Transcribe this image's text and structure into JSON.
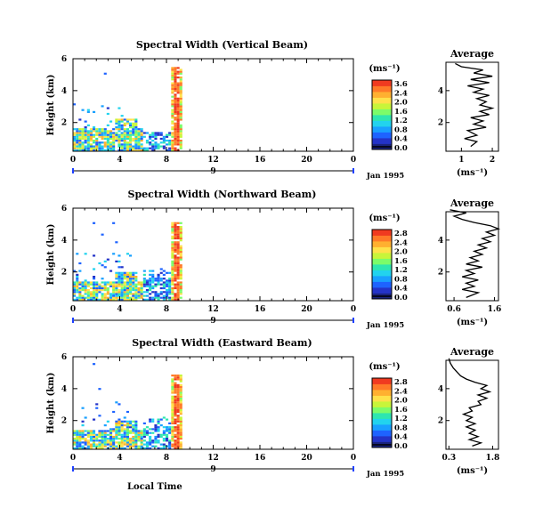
{
  "x_tick_labels": [
    "0",
    "4",
    "8",
    "12",
    "16",
    "20",
    "0"
  ],
  "date_label": "Jan 1995",
  "local_time_label": "Local Time",
  "colorbar_unit": "(ms⁻¹)",
  "average_title": "Average",
  "average_unit": "(ms⁻¹)",
  "colors": {
    "very_low": "#1a237e",
    "low": "#1e40ff",
    "mid": "#22d3ee",
    "mid2": "#7cfc6a",
    "high": "#ffe14a",
    "very_high": "#f03a20"
  },
  "chart_data": [
    {
      "type": "heatmap",
      "title": "Spectral Width (Vertical Beam)",
      "ylabel": "Height (km)",
      "xlabel": "",
      "x_ticks": [
        0,
        4,
        8,
        12,
        16,
        20,
        24
      ],
      "y_ticks": [
        2,
        4,
        6
      ],
      "xlim": [
        0,
        24
      ],
      "ylim": [
        0.2,
        6
      ],
      "day_marker": "9",
      "colorbar_ticks": [
        "3.6",
        "2.4",
        "2.0",
        "1.6",
        "1.2",
        "0.8",
        "0.4",
        "0.0"
      ],
      "average": {
        "title": "Average",
        "xlabel": "(ms⁻¹)",
        "x_ticks": [
          1,
          2
        ],
        "xlim": [
          0.5,
          2.2
        ],
        "ylim": [
          0.2,
          6
        ],
        "profile": [
          [
            0.5,
            1.3
          ],
          [
            0.8,
            1.5
          ],
          [
            1.0,
            1.1
          ],
          [
            1.2,
            1.5
          ],
          [
            1.5,
            1.2
          ],
          [
            1.7,
            1.8
          ],
          [
            1.9,
            1.4
          ],
          [
            2.1,
            1.7
          ],
          [
            2.3,
            1.3
          ],
          [
            2.5,
            1.9
          ],
          [
            2.7,
            1.6
          ],
          [
            2.9,
            2.0
          ],
          [
            3.1,
            1.6
          ],
          [
            3.3,
            1.8
          ],
          [
            3.5,
            1.5
          ],
          [
            3.7,
            1.9
          ],
          [
            3.9,
            1.4
          ],
          [
            4.1,
            1.7
          ],
          [
            4.3,
            1.2
          ],
          [
            4.5,
            1.9
          ],
          [
            4.7,
            1.3
          ],
          [
            4.9,
            2.0
          ],
          [
            5.1,
            1.4
          ],
          [
            5.3,
            1.7
          ],
          [
            5.5,
            1.0
          ],
          [
            5.7,
            0.8
          ]
        ]
      }
    },
    {
      "type": "heatmap",
      "title": "Spectral Width (Northward Beam)",
      "ylabel": "Height (km)",
      "xlabel": "",
      "x_ticks": [
        0,
        4,
        8,
        12,
        16,
        20,
        24
      ],
      "y_ticks": [
        2,
        4,
        6
      ],
      "xlim": [
        0,
        24
      ],
      "ylim": [
        0.2,
        6
      ],
      "day_marker": "9",
      "colorbar_ticks": [
        "2.8",
        "2.4",
        "2.0",
        "1.6",
        "1.2",
        "0.8",
        "0.4",
        "0.0"
      ],
      "average": {
        "title": "Average",
        "xlabel": "(ms⁻¹)",
        "x_ticks": [
          0.6,
          1.6
        ],
        "xlim": [
          0.4,
          1.7
        ],
        "ylim": [
          0.2,
          6
        ],
        "profile": [
          [
            0.4,
            0.9
          ],
          [
            0.7,
            1.2
          ],
          [
            0.9,
            0.8
          ],
          [
            1.1,
            1.1
          ],
          [
            1.3,
            0.9
          ],
          [
            1.5,
            1.2
          ],
          [
            1.7,
            0.8
          ],
          [
            1.9,
            1.1
          ],
          [
            2.1,
            0.9
          ],
          [
            2.3,
            1.3
          ],
          [
            2.5,
            0.9
          ],
          [
            2.7,
            1.2
          ],
          [
            2.9,
            1.0
          ],
          [
            3.1,
            1.3
          ],
          [
            3.3,
            1.1
          ],
          [
            3.5,
            1.4
          ],
          [
            3.7,
            1.2
          ],
          [
            3.9,
            1.5
          ],
          [
            4.1,
            1.3
          ],
          [
            4.3,
            1.6
          ],
          [
            4.5,
            1.4
          ],
          [
            4.7,
            1.7
          ],
          [
            4.9,
            1.5
          ],
          [
            5.1,
            1.1
          ],
          [
            5.3,
            0.8
          ],
          [
            5.5,
            0.6
          ],
          [
            5.7,
            0.9
          ],
          [
            5.9,
            0.5
          ]
        ]
      }
    },
    {
      "type": "heatmap",
      "title": "Spectral Width (Eastward Beam)",
      "ylabel": "Height (km)",
      "xlabel": "Local Time",
      "x_ticks": [
        0,
        4,
        8,
        12,
        16,
        20,
        24
      ],
      "y_ticks": [
        2,
        4,
        6
      ],
      "xlim": [
        0,
        24
      ],
      "ylim": [
        0.2,
        6
      ],
      "day_marker": "9",
      "colorbar_ticks": [
        "2.8",
        "2.4",
        "2.0",
        "1.6",
        "1.2",
        "0.8",
        "0.4",
        "0.0"
      ],
      "average": {
        "title": "Average",
        "xlabel": "(ms⁻¹)",
        "x_ticks": [
          0.3,
          1.8
        ],
        "xlim": [
          0.2,
          2.0
        ],
        "ylim": [
          0.2,
          6
        ],
        "profile": [
          [
            0.4,
            1.1
          ],
          [
            0.6,
            1.4
          ],
          [
            0.8,
            1.0
          ],
          [
            1.0,
            1.3
          ],
          [
            1.2,
            1.0
          ],
          [
            1.4,
            1.2
          ],
          [
            1.6,
            0.9
          ],
          [
            1.8,
            1.2
          ],
          [
            2.0,
            0.9
          ],
          [
            2.2,
            1.1
          ],
          [
            2.4,
            0.8
          ],
          [
            2.6,
            1.1
          ],
          [
            2.8,
            1.0
          ],
          [
            3.0,
            1.4
          ],
          [
            3.2,
            1.3
          ],
          [
            3.4,
            1.6
          ],
          [
            3.6,
            1.3
          ],
          [
            3.8,
            1.7
          ],
          [
            4.0,
            1.4
          ],
          [
            4.2,
            1.6
          ],
          [
            4.4,
            1.2
          ],
          [
            4.6,
            0.9
          ],
          [
            4.8,
            0.7
          ],
          [
            5.0,
            0.6
          ],
          [
            5.3,
            0.45
          ],
          [
            5.6,
            0.35
          ],
          [
            5.9,
            0.3
          ]
        ]
      }
    }
  ]
}
